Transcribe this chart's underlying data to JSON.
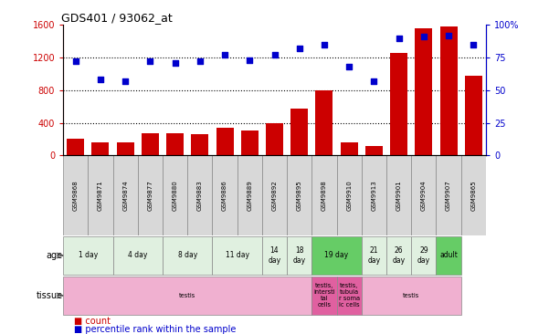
{
  "title": "GDS401 / 93062_at",
  "samples": [
    "GSM9868",
    "GSM9871",
    "GSM9874",
    "GSM9877",
    "GSM9880",
    "GSM9883",
    "GSM9886",
    "GSM9889",
    "GSM9892",
    "GSM9895",
    "GSM9898",
    "GSM9910",
    "GSM9913",
    "GSM9901",
    "GSM9904",
    "GSM9907",
    "GSM9865"
  ],
  "counts": [
    200,
    160,
    155,
    270,
    270,
    265,
    340,
    310,
    390,
    570,
    800,
    155,
    110,
    1260,
    1560,
    1580,
    980
  ],
  "percentiles": [
    72,
    58,
    57,
    72,
    71,
    72,
    77,
    73,
    77,
    82,
    85,
    68,
    57,
    90,
    91,
    92,
    85
  ],
  "age_groups": [
    {
      "label": "1 day",
      "start": 0,
      "end": 2,
      "color": "#e0f0e0"
    },
    {
      "label": "4 day",
      "start": 2,
      "end": 4,
      "color": "#e0f0e0"
    },
    {
      "label": "8 day",
      "start": 4,
      "end": 6,
      "color": "#e0f0e0"
    },
    {
      "label": "11 day",
      "start": 6,
      "end": 8,
      "color": "#e0f0e0"
    },
    {
      "label": "14\nday",
      "start": 8,
      "end": 9,
      "color": "#e0f0e0"
    },
    {
      "label": "18\nday",
      "start": 9,
      "end": 10,
      "color": "#e0f0e0"
    },
    {
      "label": "19 day",
      "start": 10,
      "end": 12,
      "color": "#66cc66"
    },
    {
      "label": "21\nday",
      "start": 12,
      "end": 13,
      "color": "#e0f0e0"
    },
    {
      "label": "26\nday",
      "start": 13,
      "end": 14,
      "color": "#e0f0e0"
    },
    {
      "label": "29\nday",
      "start": 14,
      "end": 15,
      "color": "#e0f0e0"
    },
    {
      "label": "adult",
      "start": 15,
      "end": 16,
      "color": "#66cc66"
    }
  ],
  "tissue_groups": [
    {
      "label": "testis",
      "start": 0,
      "end": 10,
      "color": "#f0b0d0"
    },
    {
      "label": "testis,\nintersti\ntal\ncells",
      "start": 10,
      "end": 11,
      "color": "#e060a0"
    },
    {
      "label": "testis,\ntubula\nr soma\nic cells",
      "start": 11,
      "end": 12,
      "color": "#e060a0"
    },
    {
      "label": "testis",
      "start": 12,
      "end": 16,
      "color": "#f0b0d0"
    }
  ],
  "bar_color": "#cc0000",
  "dot_color": "#0000cc",
  "left_ylim": [
    0,
    1600
  ],
  "right_ylim": [
    0,
    100
  ],
  "left_yticks": [
    0,
    400,
    800,
    1200,
    1600
  ],
  "right_yticks": [
    0,
    25,
    50,
    75,
    100
  ],
  "right_yticklabels": [
    "0",
    "25",
    "50",
    "75",
    "100%"
  ],
  "hgrid_lines": [
    400,
    800,
    1200
  ],
  "sample_box_color": "#d8d8d8"
}
